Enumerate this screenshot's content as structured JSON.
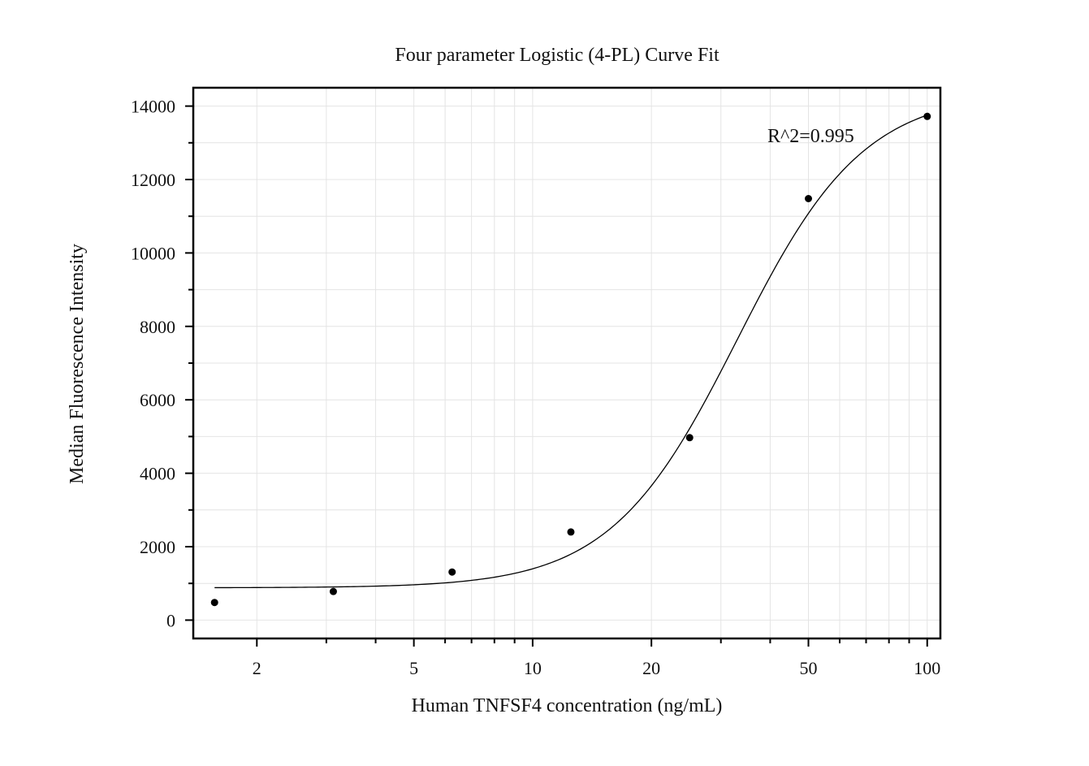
{
  "chart_data": {
    "type": "scatter",
    "title": "Four parameter Logistic (4-PL) Curve Fit",
    "xlabel": "Human TNFSF4 concentration (ng/mL)",
    "ylabel": "Median Fluorescence Intensity",
    "x_scale": "log",
    "xlim": [
      1.38,
      108
    ],
    "ylim": [
      -500,
      14500
    ],
    "x_ticks": [
      2,
      5,
      10,
      20,
      50,
      100
    ],
    "x_tick_labels": [
      "2",
      "5",
      "10",
      "20",
      "50",
      "100"
    ],
    "y_ticks": [
      0,
      2000,
      4000,
      6000,
      8000,
      10000,
      12000,
      14000
    ],
    "y_tick_labels": [
      "0",
      "2000",
      "4000",
      "6000",
      "8000",
      "10000",
      "12000",
      "14000"
    ],
    "grid": true,
    "series": [
      {
        "kind": "points",
        "x": [
          1.5625,
          3.125,
          6.25,
          12.5,
          25,
          50,
          100
        ],
        "y": [
          480,
          780,
          1310,
          2400,
          4970,
          11480,
          13720
        ]
      },
      {
        "kind": "fit",
        "model": "4PL",
        "params": {
          "A": 880,
          "D": 14400,
          "C": 33,
          "B": 2.7
        },
        "x_range": [
          1.5625,
          100
        ]
      }
    ],
    "annotation": "R^2=0.995",
    "colors": {
      "points": "#000000",
      "curve": "#000000",
      "grid": "#e4e4e4",
      "axes": "#000000"
    }
  }
}
